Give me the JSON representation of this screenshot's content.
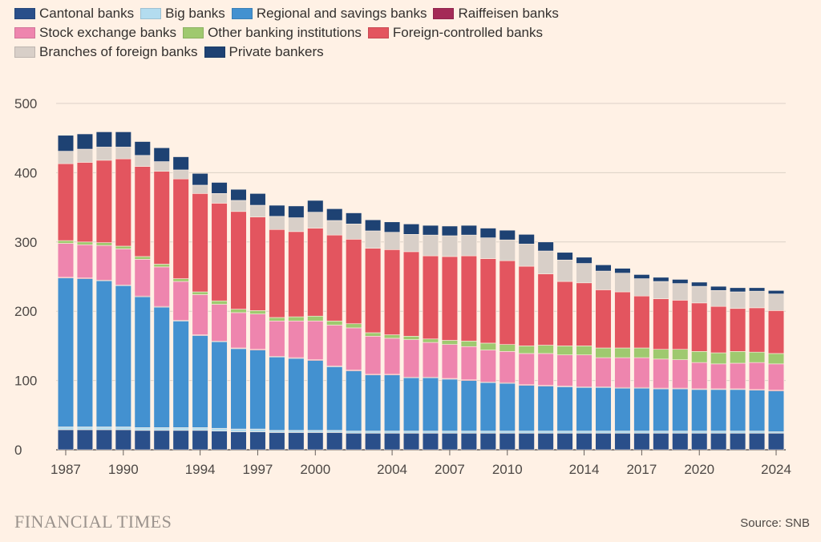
{
  "branding": "FINANCIAL TIMES",
  "source": "Source: SNB",
  "chart_data": {
    "type": "bar",
    "stacked": true,
    "title": "",
    "xlabel": "",
    "ylabel": "",
    "ylim": [
      0,
      500
    ],
    "yticks": [
      0,
      100,
      200,
      300,
      400,
      500
    ],
    "grid": true,
    "legend_position": "top-left",
    "x": [
      1987,
      1988,
      1989,
      1990,
      1991,
      1992,
      1993,
      1994,
      1995,
      1996,
      1997,
      1998,
      1999,
      2000,
      2001,
      2002,
      2003,
      2004,
      2005,
      2006,
      2007,
      2008,
      2009,
      2010,
      2011,
      2012,
      2013,
      2014,
      2015,
      2016,
      2017,
      2018,
      2019,
      2020,
      2021,
      2022,
      2023,
      2024
    ],
    "xtick_labels": [
      "1987",
      "1990",
      "1994",
      "1997",
      "2000",
      "2004",
      "2007",
      "2010",
      "2014",
      "2017",
      "2020",
      "2024"
    ],
    "series": [
      {
        "name": "Cantonal banks",
        "color": "#2a4f8a",
        "values": [
          29,
          29,
          29,
          29,
          28,
          28,
          28,
          28,
          27,
          26,
          26,
          25,
          25,
          25,
          25,
          24,
          24,
          24,
          24,
          24,
          24,
          24,
          24,
          24,
          24,
          24,
          24,
          24,
          24,
          24,
          24,
          24,
          24,
          24,
          24,
          24,
          24,
          24
        ]
      },
      {
        "name": "Big banks",
        "color": "#b3dcef",
        "values": [
          4,
          4,
          4,
          4,
          4,
          4,
          4,
          4,
          4,
          4,
          4,
          3,
          3,
          3,
          3,
          3,
          3,
          3,
          3,
          3,
          3,
          3,
          3,
          3,
          3,
          3,
          3,
          3,
          3,
          3,
          3,
          3,
          3,
          3,
          3,
          3,
          3,
          2
        ]
      },
      {
        "name": "Regional and savings banks",
        "color": "#4391d0",
        "values": [
          215,
          214,
          211,
          204,
          189,
          174,
          154,
          133,
          125,
          116,
          114,
          106,
          104,
          101,
          92,
          87,
          81,
          81,
          77,
          77,
          75,
          73,
          70,
          69,
          66,
          65,
          64,
          63,
          63,
          62,
          62,
          61,
          61,
          60,
          60,
          60,
          59,
          59
        ]
      },
      {
        "name": "Raiffeisen banks",
        "color": "#a42b57",
        "values": [
          1,
          1,
          1,
          1,
          1,
          1,
          1,
          1,
          1,
          1,
          1,
          1,
          1,
          1,
          1,
          1,
          1,
          1,
          1,
          1,
          1,
          1,
          1,
          1,
          1,
          1,
          1,
          1,
          1,
          1,
          1,
          1,
          1,
          1,
          1,
          1,
          1,
          1
        ]
      },
      {
        "name": "Stock exchange banks",
        "color": "#ee85ae",
        "values": [
          49,
          48,
          50,
          52,
          53,
          57,
          56,
          58,
          53,
          51,
          51,
          51,
          53,
          56,
          59,
          61,
          55,
          52,
          54,
          50,
          49,
          48,
          46,
          45,
          45,
          46,
          45,
          46,
          42,
          43,
          43,
          42,
          41,
          38,
          36,
          37,
          39,
          38
        ]
      },
      {
        "name": "Other banking institutions",
        "color": "#9fc96f",
        "values": [
          4,
          4,
          4,
          4,
          4,
          4,
          4,
          4,
          5,
          5,
          5,
          5,
          6,
          7,
          6,
          6,
          5,
          5,
          5,
          5,
          6,
          8,
          10,
          10,
          11,
          12,
          13,
          13,
          14,
          14,
          14,
          14,
          15,
          16,
          16,
          17,
          15,
          15
        ]
      },
      {
        "name": "Foreign-controlled banks",
        "color": "#e3555f",
        "values": [
          111,
          115,
          119,
          126,
          130,
          134,
          144,
          142,
          141,
          141,
          135,
          127,
          123,
          127,
          124,
          122,
          122,
          123,
          122,
          120,
          121,
          123,
          122,
          121,
          115,
          103,
          93,
          91,
          84,
          81,
          75,
          73,
          71,
          70,
          67,
          62,
          64,
          62
        ]
      },
      {
        "name": "Branches of foreign banks",
        "color": "#d8cfc8",
        "values": [
          18,
          19,
          19,
          17,
          16,
          14,
          13,
          12,
          14,
          16,
          17,
          19,
          20,
          23,
          21,
          22,
          25,
          25,
          25,
          30,
          30,
          30,
          30,
          30,
          32,
          33,
          31,
          28,
          27,
          27,
          25,
          25,
          24,
          24,
          23,
          24,
          24,
          24
        ]
      },
      {
        "name": "Private bankers",
        "color": "#1e4273",
        "values": [
          23,
          22,
          22,
          22,
          20,
          20,
          19,
          17,
          16,
          16,
          17,
          16,
          17,
          17,
          17,
          16,
          16,
          15,
          15,
          14,
          14,
          14,
          14,
          14,
          14,
          13,
          11,
          9,
          9,
          7,
          6,
          6,
          6,
          6,
          6,
          6,
          5,
          5
        ]
      }
    ]
  }
}
